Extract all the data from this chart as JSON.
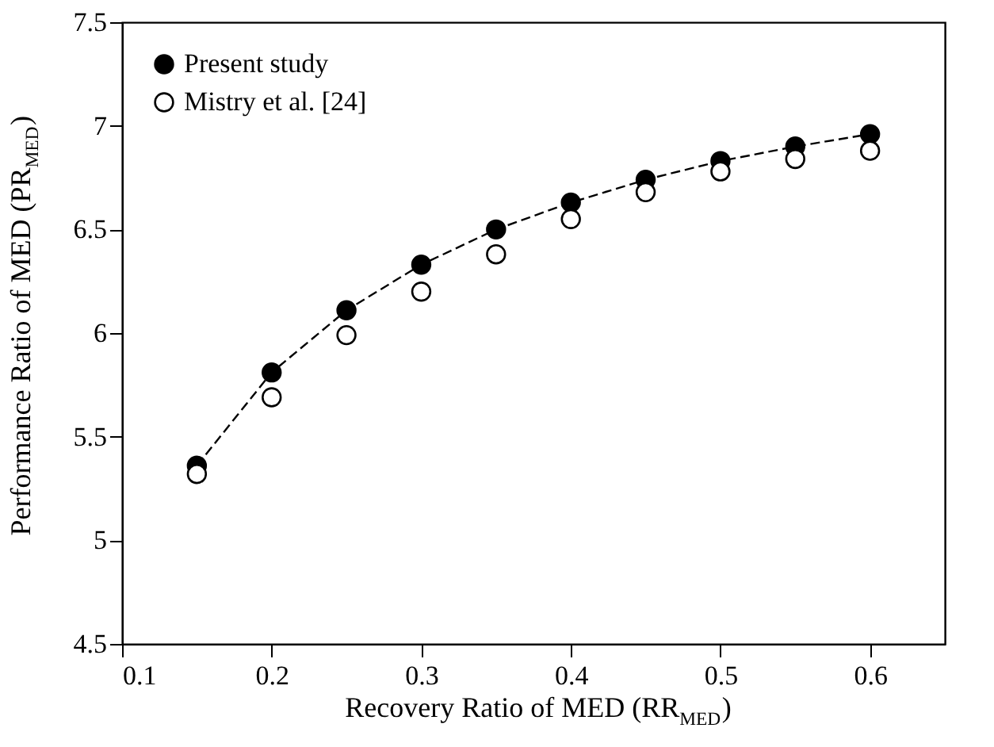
{
  "chart_data": {
    "type": "line",
    "xlabel": "Recovery Ratio of MED (RR$_{MED}$)",
    "ylabel": "Performance Ratio of MED (PR$_{MED}$)",
    "x": [
      0.15,
      0.2,
      0.25,
      0.3,
      0.35,
      0.4,
      0.45,
      0.5,
      0.55,
      0.6
    ],
    "series": [
      {
        "name": "Present study",
        "color": "#000000",
        "type": "line",
        "marker": "circle",
        "line_style": "dashed",
        "values": [
          5.36,
          5.81,
          6.11,
          6.33,
          6.5,
          6.63,
          6.74,
          6.83,
          6.9,
          6.96
        ]
      },
      {
        "name": "Mistry et al. [24]",
        "color": "#000000",
        "type": "scatter",
        "marker": "circle",
        "values": [
          5.32,
          5.69,
          5.99,
          6.2,
          6.38,
          6.55,
          6.68,
          6.78,
          6.84,
          6.88
        ]
      }
    ],
    "xlim": [
      0.1,
      0.65
    ],
    "xticks": [
      0.1,
      0.2,
      0.3,
      0.4,
      0.5,
      0.6
    ],
    "ylim": [
      4.5,
      7.5
    ],
    "yticks": [
      4.5,
      5,
      5.5,
      6,
      6.5,
      7,
      7.5
    ],
    "grid": false,
    "legend": "top left"
  }
}
